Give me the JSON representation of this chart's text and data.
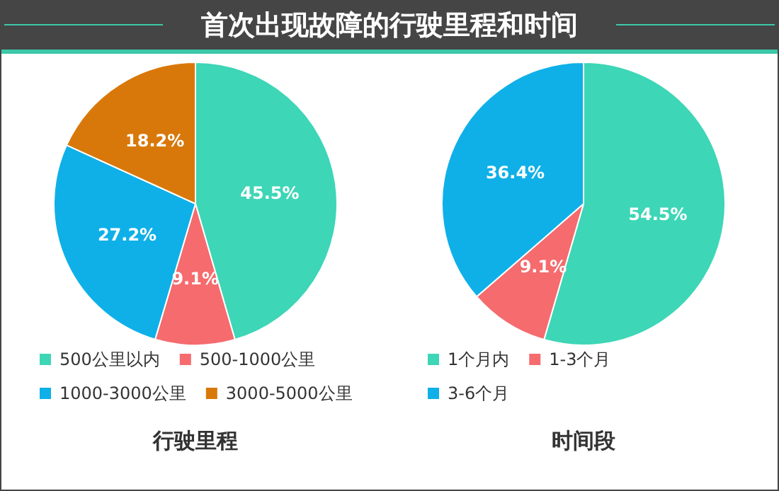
{
  "chart_data": [
    {
      "type": "pie",
      "title": "首次出现故障的行驶里程和时间",
      "subtitle": "行驶里程",
      "categories": [
        "500公里以内",
        "500-1000公里",
        "1000-3000公里",
        "3000-5000公里"
      ],
      "values": [
        45.5,
        9.1,
        27.2,
        18.2
      ],
      "value_labels": [
        "45.5%",
        "9.1%",
        "27.2%",
        "18.2%"
      ],
      "colors": [
        "#3dd6b6",
        "#f56b6e",
        "#0fb0e8",
        "#d9780a"
      ],
      "legend": "bottom"
    },
    {
      "type": "pie",
      "subtitle": "时间段",
      "categories": [
        "1个月内",
        "1-3个月",
        "3-6个月"
      ],
      "values": [
        54.5,
        9.1,
        36.4
      ],
      "value_labels": [
        "54.5%",
        "9.1%",
        "36.4%"
      ],
      "colors": [
        "#3dd6b6",
        "#f56b6e",
        "#0fb0e8"
      ],
      "legend": "bottom"
    }
  ]
}
